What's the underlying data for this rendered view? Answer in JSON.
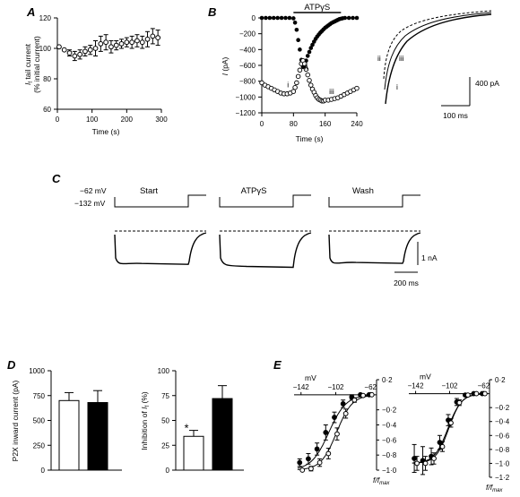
{
  "panels": {
    "a": "A",
    "b": "B",
    "c": "C",
    "d": "D",
    "e": "E"
  },
  "chart_data": [
    {
      "id": "A",
      "type": "scatter",
      "ylabel": "If tail current (% initial current)",
      "ylabel_line1": "I",
      "ylabel_sub": "f",
      "ylabel_rest": " tail current",
      "ylabel_line2": "(% initial current)",
      "xlabel": "Time (s)",
      "xlim": [
        0,
        300
      ],
      "ylim": [
        60,
        120
      ],
      "xticks": [
        "0",
        "100",
        "200",
        "300"
      ],
      "yticks": [
        "60",
        "80",
        "100",
        "120"
      ],
      "points": [
        {
          "x": 5,
          "y": 101,
          "e": 0
        },
        {
          "x": 20,
          "y": 99,
          "e": 0
        },
        {
          "x": 35,
          "y": 97,
          "e": 2
        },
        {
          "x": 50,
          "y": 95,
          "e": 3
        },
        {
          "x": 65,
          "y": 96,
          "e": 3
        },
        {
          "x": 80,
          "y": 98,
          "e": 3
        },
        {
          "x": 95,
          "y": 99,
          "e": 3
        },
        {
          "x": 110,
          "y": 100,
          "e": 5
        },
        {
          "x": 125,
          "y": 103,
          "e": 5
        },
        {
          "x": 140,
          "y": 104,
          "e": 5
        },
        {
          "x": 155,
          "y": 101,
          "e": 4
        },
        {
          "x": 170,
          "y": 102,
          "e": 3
        },
        {
          "x": 185,
          "y": 103,
          "e": 3
        },
        {
          "x": 200,
          "y": 104,
          "e": 3
        },
        {
          "x": 215,
          "y": 104,
          "e": 4
        },
        {
          "x": 230,
          "y": 105,
          "e": 4
        },
        {
          "x": 245,
          "y": 104,
          "e": 4
        },
        {
          "x": 260,
          "y": 106,
          "e": 5
        },
        {
          "x": 275,
          "y": 108,
          "e": 5
        },
        {
          "x": 290,
          "y": 107,
          "e": 5
        }
      ]
    },
    {
      "id": "B",
      "type": "scatter",
      "ylabel": "I (pA)",
      "xlabel": "Time (s)",
      "drug_label": "ATPγS",
      "drug_on": 80,
      "drug_off": 200,
      "xlim": [
        0,
        240
      ],
      "ylim": [
        -1200,
        0
      ],
      "xticks": [
        "0",
        "80",
        "160",
        "240"
      ],
      "yticks": [
        "0",
        "−200",
        "−400",
        "−600",
        "−800",
        "−1000",
        "−1200"
      ],
      "point_labels": [
        {
          "text": "i",
          "x": 64,
          "y": -880
        },
        {
          "text": "ii",
          "x": 108,
          "y": -650
        },
        {
          "text": "iii",
          "x": 170,
          "y": -960
        }
      ],
      "series": [
        {
          "name": "filled",
          "points": [
            [
              0,
              0
            ],
            [
              10,
              0
            ],
            [
              20,
              0
            ],
            [
              30,
              0
            ],
            [
              40,
              0
            ],
            [
              50,
              0
            ],
            [
              60,
              0
            ],
            [
              70,
              0
            ],
            [
              80,
              -5
            ],
            [
              84,
              -60
            ],
            [
              88,
              -150
            ],
            [
              92,
              -280
            ],
            [
              96,
              -400
            ],
            [
              100,
              -530
            ],
            [
              104,
              -620
            ],
            [
              108,
              -600
            ],
            [
              112,
              -540
            ],
            [
              116,
              -480
            ],
            [
              120,
              -430
            ],
            [
              124,
              -380
            ],
            [
              128,
              -340
            ],
            [
              132,
              -300
            ],
            [
              136,
              -265
            ],
            [
              140,
              -235
            ],
            [
              144,
              -210
            ],
            [
              148,
              -185
            ],
            [
              152,
              -165
            ],
            [
              156,
              -145
            ],
            [
              160,
              -125
            ],
            [
              164,
              -110
            ],
            [
              168,
              -95
            ],
            [
              172,
              -80
            ],
            [
              176,
              -65
            ],
            [
              180,
              -55
            ],
            [
              184,
              -45
            ],
            [
              188,
              -35
            ],
            [
              192,
              -25
            ],
            [
              196,
              -15
            ],
            [
              200,
              -10
            ],
            [
              204,
              -5
            ],
            [
              210,
              0
            ],
            [
              220,
              0
            ],
            [
              230,
              0
            ],
            [
              240,
              0
            ]
          ]
        },
        {
          "name": "open",
          "points": [
            [
              0,
              -820
            ],
            [
              8,
              -850
            ],
            [
              16,
              -870
            ],
            [
              24,
              -890
            ],
            [
              32,
              -910
            ],
            [
              40,
              -930
            ],
            [
              48,
              -950
            ],
            [
              56,
              -960
            ],
            [
              64,
              -960
            ],
            [
              72,
              -950
            ],
            [
              80,
              -930
            ],
            [
              84,
              -880
            ],
            [
              88,
              -820
            ],
            [
              92,
              -740
            ],
            [
              96,
              -660
            ],
            [
              100,
              -580
            ],
            [
              104,
              -540
            ],
            [
              108,
              -580
            ],
            [
              112,
              -650
            ],
            [
              116,
              -720
            ],
            [
              120,
              -790
            ],
            [
              124,
              -850
            ],
            [
              128,
              -900
            ],
            [
              132,
              -940
            ],
            [
              136,
              -980
            ],
            [
              140,
              -1010
            ],
            [
              144,
              -1030
            ],
            [
              148,
              -1040
            ],
            [
              152,
              -1050
            ],
            [
              156,
              -1050
            ],
            [
              160,
              -1040
            ],
            [
              168,
              -1040
            ],
            [
              176,
              -1030
            ],
            [
              184,
              -1020
            ],
            [
              192,
              -1010
            ],
            [
              200,
              -990
            ],
            [
              208,
              -970
            ],
            [
              216,
              -950
            ],
            [
              224,
              -930
            ],
            [
              232,
              -910
            ],
            [
              240,
              -890
            ]
          ]
        }
      ],
      "inset": {
        "trace_labels": [
          "ii",
          "iii",
          "i"
        ],
        "scale_y": "400 pA",
        "scale_x": "100 ms"
      }
    },
    {
      "id": "C",
      "type": "line",
      "conditions": [
        "Start",
        "ATPγS",
        "Wash"
      ],
      "voltages": [
        "−62 mV",
        "−132 mV"
      ],
      "scale_y": "1 nA",
      "scale_x": "200 ms",
      "steady_state_nA": [
        1.6,
        1.75,
        1.55
      ],
      "tail_nA": [
        0.9,
        0.85,
        0.9
      ]
    },
    {
      "id": "D1",
      "type": "bar",
      "ylabel": "P2X inward current (pA)",
      "ylim": [
        0,
        1000
      ],
      "yticks": [
        "0",
        "250",
        "500",
        "750",
        "1000"
      ],
      "bars": [
        {
          "value": 700,
          "err": 80,
          "fill": "#ffffff"
        },
        {
          "value": 680,
          "err": 120,
          "fill": "#000000"
        }
      ]
    },
    {
      "id": "D2",
      "type": "bar",
      "ylabel": "Inhibition of If (%)",
      "ylabel_pre": "Inhibition of ",
      "ylabel_i": "I",
      "ylabel_sub": "f",
      "ylabel_post": " (%)",
      "ylim": [
        0,
        100
      ],
      "yticks": [
        "0",
        "25",
        "50",
        "75",
        "100"
      ],
      "significance": "*",
      "bars": [
        {
          "value": 34,
          "err": 6,
          "fill": "#ffffff"
        },
        {
          "value": 72,
          "err": 13,
          "fill": "#000000"
        }
      ]
    },
    {
      "id": "E1",
      "type": "line",
      "xlabel": "mV",
      "ylabel": "f/fmax",
      "ylabel_main": "f/f",
      "ylabel_sub": "max",
      "xlim": [
        -150,
        -55
      ],
      "ylim": [
        -1.0,
        0.2
      ],
      "xticks": [
        "−142",
        "−102",
        "−62"
      ],
      "yticks": [
        "0·2",
        "−0·2",
        "−0·4",
        "−0·6",
        "−0·8",
        "−1·0"
      ],
      "series": [
        {
          "name": "filled",
          "points": [
            [
              -142,
              -0.9,
              0.05
            ],
            [
              -132,
              -0.85,
              0.07
            ],
            [
              -122,
              -0.72,
              0.08
            ],
            [
              -112,
              -0.5,
              0.1
            ],
            [
              -102,
              -0.3,
              0.07
            ],
            [
              -92,
              -0.12,
              0.05
            ],
            [
              -82,
              -0.03,
              0.03
            ],
            [
              -72,
              0,
              0
            ],
            [
              -62,
              0,
              0
            ]
          ],
          "v_half": -110,
          "k": 10
        },
        {
          "name": "open",
          "points": [
            [
              -142,
              -1.0,
              0
            ],
            [
              -132,
              -0.98,
              0.03
            ],
            [
              -122,
              -0.9,
              0.05
            ],
            [
              -112,
              -0.78,
              0.07
            ],
            [
              -102,
              -0.52,
              0.08
            ],
            [
              -92,
              -0.25,
              0.06
            ],
            [
              -82,
              -0.07,
              0.03
            ],
            [
              -72,
              -0.01,
              0
            ],
            [
              -62,
              0,
              0
            ]
          ],
          "v_half": -101,
          "k": 9
        }
      ]
    },
    {
      "id": "E2",
      "type": "line",
      "xlabel": "mV",
      "ylabel": "f/fmax",
      "ylabel_main": "f/f",
      "ylabel_sub": "max",
      "xlim": [
        -150,
        -55
      ],
      "ylim": [
        -1.2,
        0.2
      ],
      "xticks": [
        "−142",
        "−102",
        "−62"
      ],
      "yticks": [
        "0·2",
        "−0·2",
        "−0·4",
        "−0·6",
        "−0·8",
        "−1·0",
        "−1·2"
      ],
      "series": [
        {
          "name": "filled",
          "points": [
            [
              -142,
              -0.93,
              0.2
            ],
            [
              -132,
              -0.96,
              0.2
            ],
            [
              -122,
              -0.9,
              0.12
            ],
            [
              -112,
              -0.7,
              0.1
            ],
            [
              -102,
              -0.38,
              0.08
            ],
            [
              -92,
              -0.12,
              0.05
            ],
            [
              -82,
              -0.02,
              0.02
            ],
            [
              -72,
              0,
              0
            ],
            [
              -62,
              0,
              0
            ]
          ],
          "v_half": -104,
          "k": 8
        },
        {
          "name": "open",
          "points": [
            [
              -142,
              -1.0,
              0.1
            ],
            [
              -132,
              -1.0,
              0.1
            ],
            [
              -122,
              -0.93,
              0.08
            ],
            [
              -112,
              -0.76,
              0.07
            ],
            [
              -102,
              -0.42,
              0.06
            ],
            [
              -92,
              -0.13,
              0.04
            ],
            [
              -82,
              -0.02,
              0.02
            ],
            [
              -72,
              0,
              0
            ],
            [
              -62,
              0,
              0
            ]
          ],
          "v_half": -103,
          "k": 7.5
        }
      ]
    }
  ]
}
